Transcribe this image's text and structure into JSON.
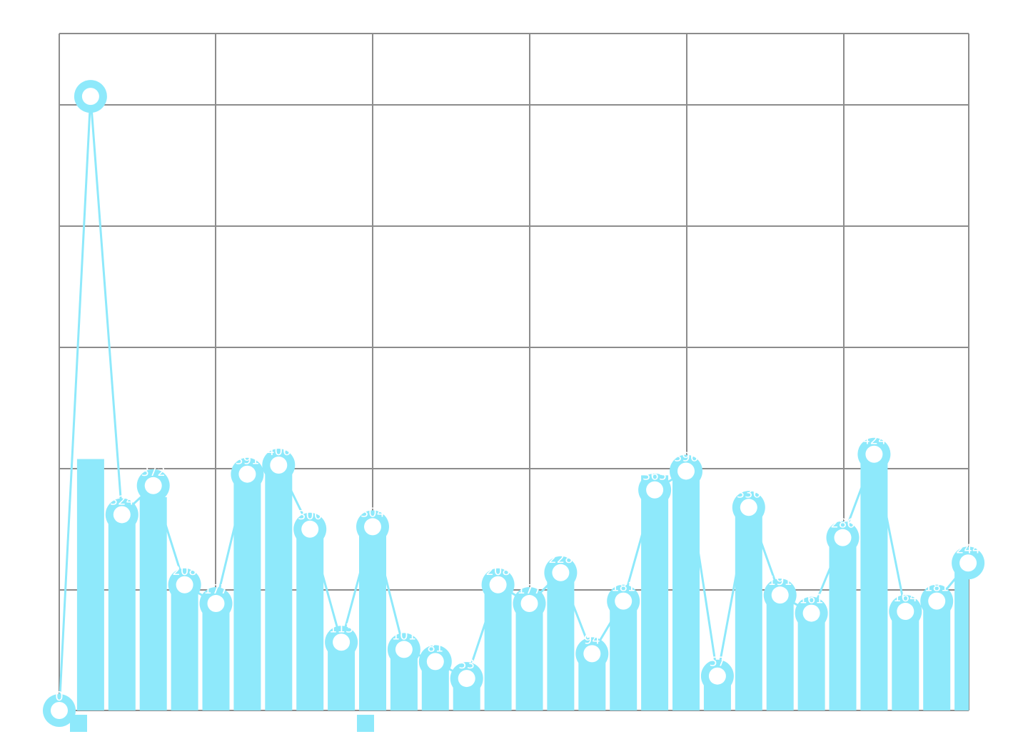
{
  "chart_data": {
    "type": "bar",
    "ylim": [
      0,
      1120
    ],
    "grid": true,
    "legend_position": "bottom",
    "colors": {
      "bars": "#8ee9fb",
      "line": "#8ee9fb",
      "point_fill": "#ffffff",
      "grid": "#8c8c8c"
    },
    "series": [
      {
        "kind": "bar",
        "values": [
          10,
          416,
          326,
          353,
          213,
          183,
          387,
          404,
          301,
          111,
          304,
          106,
          83,
          65,
          212,
          182,
          230,
          94,
          183,
          389,
          401,
          65,
          335,
          196,
          175,
          297,
          423,
          171,
          180,
          245
        ]
      },
      {
        "kind": "line",
        "values": [
          0,
          1016,
          324,
          372,
          208,
          177,
          391,
          406,
          300,
          113,
          304,
          101,
          81,
          53,
          208,
          177,
          228,
          94,
          181,
          365,
          396,
          57,
          336,
          191,
          161,
          286,
          424,
          164,
          181,
          244
        ],
        "labels": [
          "0",
          "",
          "324",
          "372",
          "208",
          "177",
          "391",
          "406",
          "300",
          "113",
          "304",
          "101",
          "81",
          "53",
          "208",
          "177",
          "228",
          "94",
          "181",
          "365",
          "396",
          "57",
          "336",
          "191",
          "161",
          "286",
          "424",
          "164",
          "181",
          "244"
        ]
      }
    ]
  }
}
